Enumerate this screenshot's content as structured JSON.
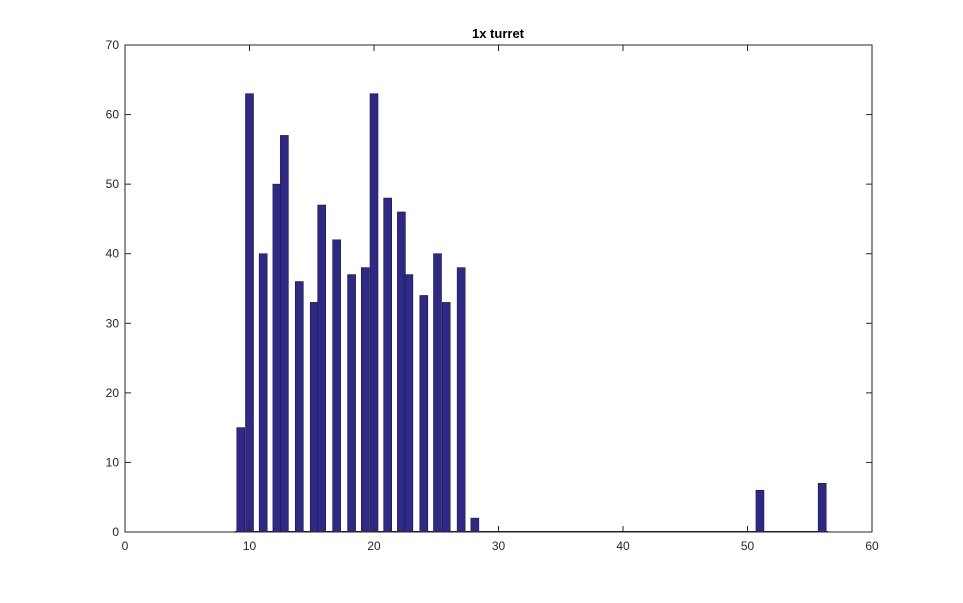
{
  "chart_data": {
    "type": "bar",
    "title": "1x turret",
    "xlabel": "",
    "ylabel": "",
    "xlim": [
      0,
      60
    ],
    "ylim": [
      0,
      70
    ],
    "x_ticks": [
      0,
      10,
      20,
      30,
      40,
      50,
      60
    ],
    "y_ticks": [
      0,
      10,
      20,
      30,
      40,
      50,
      60,
      70
    ],
    "x_tick_labels": [
      "0",
      "10",
      "20",
      "30",
      "40",
      "50",
      "60"
    ],
    "y_tick_labels": [
      "0",
      "10",
      "20",
      "30",
      "40",
      "50",
      "60",
      "70"
    ],
    "grid": false,
    "bar_color": "#2e2886",
    "bar_edge_color": "#1a1a3a",
    "axis_color": "#262626",
    "x": [
      9.3,
      10,
      11.1,
      12.2,
      12.8,
      14,
      15.2,
      15.8,
      17,
      18.2,
      19.3,
      20,
      21.1,
      22.2,
      22.8,
      24,
      25.1,
      25.8,
      27,
      28.1,
      29,
      30,
      35,
      40,
      45,
      50,
      51,
      52,
      53,
      54,
      55,
      56
    ],
    "values": [
      15,
      63,
      40,
      50,
      57,
      36,
      33,
      47,
      42,
      37,
      38,
      63,
      48,
      46,
      37,
      34,
      40,
      33,
      38,
      2,
      0,
      0,
      0,
      0,
      0,
      0,
      6,
      0,
      0,
      0,
      0,
      7
    ]
  }
}
